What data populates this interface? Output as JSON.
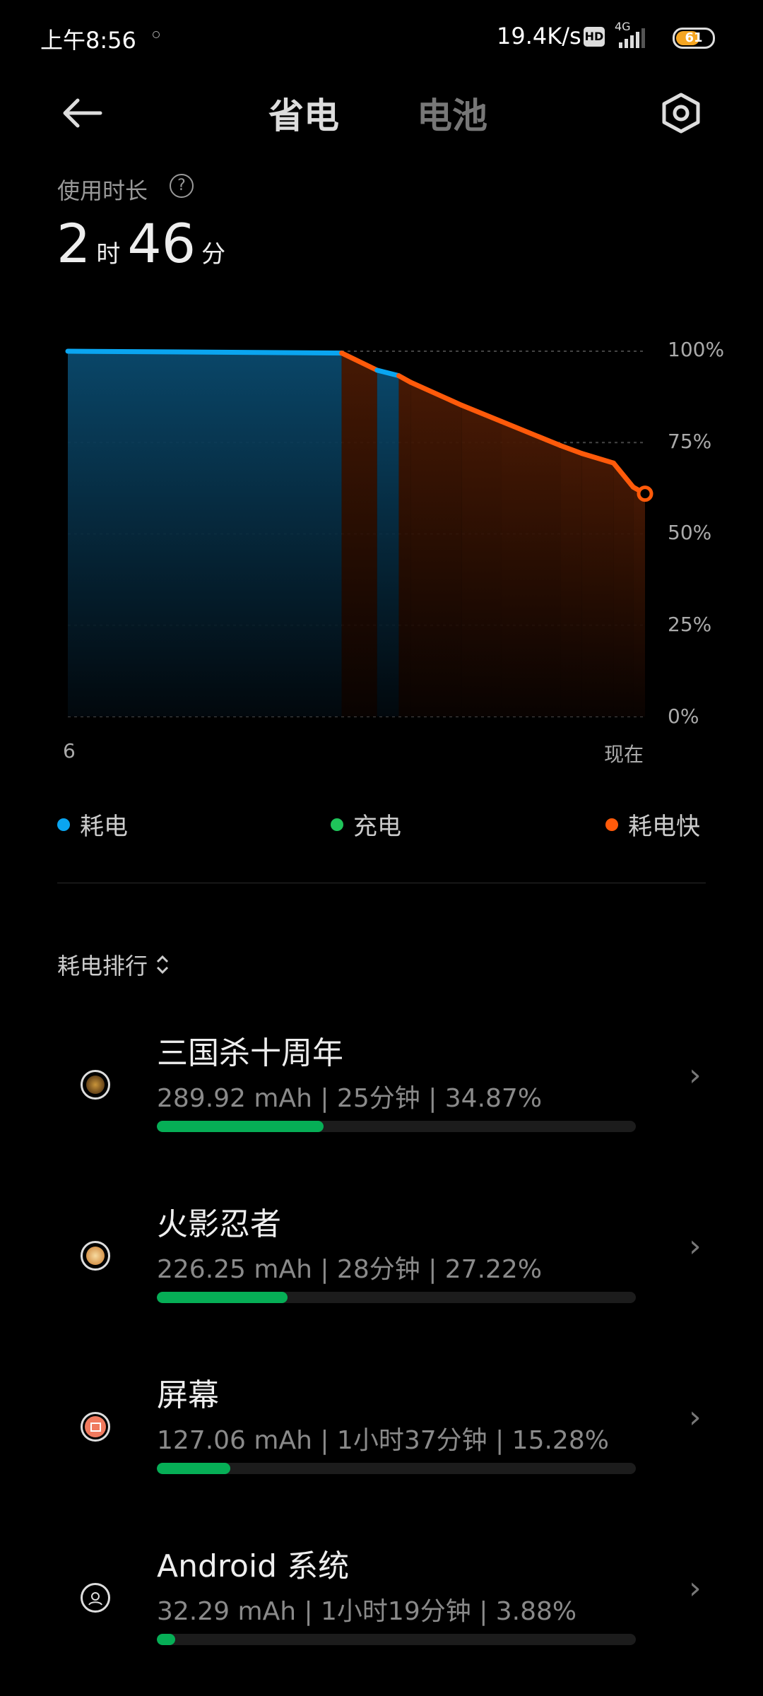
{
  "status_bar": {
    "time": "上午8:56",
    "net_speed": "19.4K/s",
    "hd": "HD",
    "network": "4G",
    "battery": "61"
  },
  "header": {
    "tabs": [
      {
        "label": "省电",
        "active": true
      },
      {
        "label": "电池",
        "active": false
      }
    ]
  },
  "usage": {
    "label": "使用时长",
    "hours": "2",
    "hours_unit": "时",
    "minutes": "46",
    "minutes_unit": "分"
  },
  "chart_data": {
    "type": "line",
    "x_tick_labels": [
      "6",
      "现在"
    ],
    "x_unit": "hour of day",
    "xlim": [
      6,
      8.93
    ],
    "ylim": [
      0,
      100
    ],
    "y_tick_labels": [
      "100%",
      "75%",
      "50%",
      "25%",
      "0%"
    ],
    "grid": true,
    "points": [
      {
        "x": 6.0,
        "y": 100,
        "type": "discharge"
      },
      {
        "x": 7.39,
        "y": 99.5,
        "type": "fast"
      },
      {
        "x": 7.57,
        "y": 94.8,
        "type": "discharge"
      },
      {
        "x": 7.68,
        "y": 93.3,
        "type": "fast"
      },
      {
        "x": 7.74,
        "y": 91.5,
        "type": "fast"
      },
      {
        "x": 8.0,
        "y": 85.2,
        "type": "fast"
      },
      {
        "x": 8.2,
        "y": 80.8,
        "type": "fast"
      },
      {
        "x": 8.5,
        "y": 74.2,
        "type": "fast"
      },
      {
        "x": 8.61,
        "y": 72,
        "type": "fast"
      },
      {
        "x": 8.77,
        "y": 69.4,
        "type": "fast"
      },
      {
        "x": 8.87,
        "y": 62.8,
        "type": "fast"
      },
      {
        "x": 8.93,
        "y": 61,
        "type": "fast"
      }
    ],
    "colors": {
      "discharge": "#0aa5f0",
      "charge": "#1fc45a",
      "fast": "#ff5a0a"
    }
  },
  "legend": [
    {
      "label": "耗电",
      "color": "#0aa5f0"
    },
    {
      "label": "充电",
      "color": "#1fc45a"
    },
    {
      "label": "耗电快",
      "color": "#ff5a0a"
    }
  ],
  "ranking": {
    "title": "耗电排行",
    "items": [
      {
        "name": "三国杀十周年",
        "detail": "289.92 mAh | 25分钟 | 34.87%",
        "percent": 34.87,
        "icon": "sanguosha-app-icon"
      },
      {
        "name": "火影忍者",
        "detail": "226.25 mAh | 28分钟 | 27.22%",
        "percent": 27.22,
        "icon": "naruto-app-icon"
      },
      {
        "name": "屏幕",
        "detail": "127.06 mAh | 1小时37分钟 | 15.28%",
        "percent": 15.28,
        "icon": "screen-icon"
      },
      {
        "name": "Android 系统",
        "detail": "32.29 mAh | 1小时19分钟 | 3.88%",
        "percent": 3.88,
        "icon": "android-system-icon"
      }
    ]
  }
}
